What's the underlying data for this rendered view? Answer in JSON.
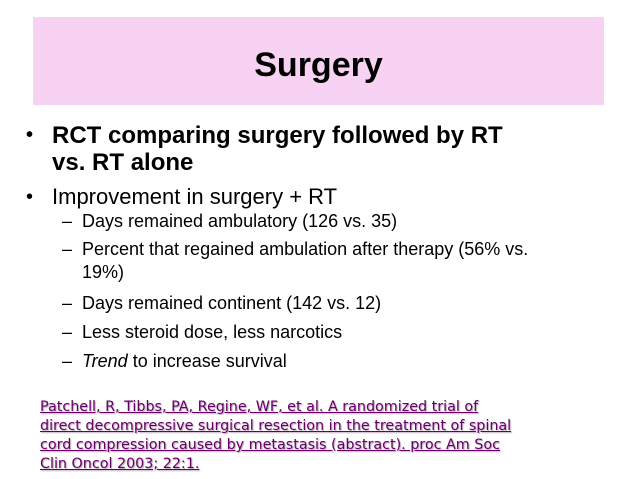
{
  "title": "Surgery",
  "bullets": [
    {
      "lines": [
        "RCT comparing surgery followed by RT",
        "vs. RT alone"
      ]
    },
    {
      "text": "Improvement in surgery + RT"
    }
  ],
  "sub_bullets": [
    "Days remained ambulatory (126 vs. 35)",
    {
      "lines": [
        "Percent that regained ambulation after therapy (56% vs.",
        "19%)"
      ]
    },
    "Days remained continent (142 vs. 12)",
    "Less steroid dose, less narcotics",
    {
      "emphasis": "Trend",
      "rest": " to increase survival"
    }
  ],
  "citation": {
    "lines": [
      "Patchell, R, Tibbs, PA, Regine, WF, et al. A randomized trial of",
      "direct decompressive surgical resection in the treatment of spinal",
      "cord compression caused by metastasis (abstract). proc Am Soc",
      "Clin Oncol 2003; 22:1."
    ]
  }
}
